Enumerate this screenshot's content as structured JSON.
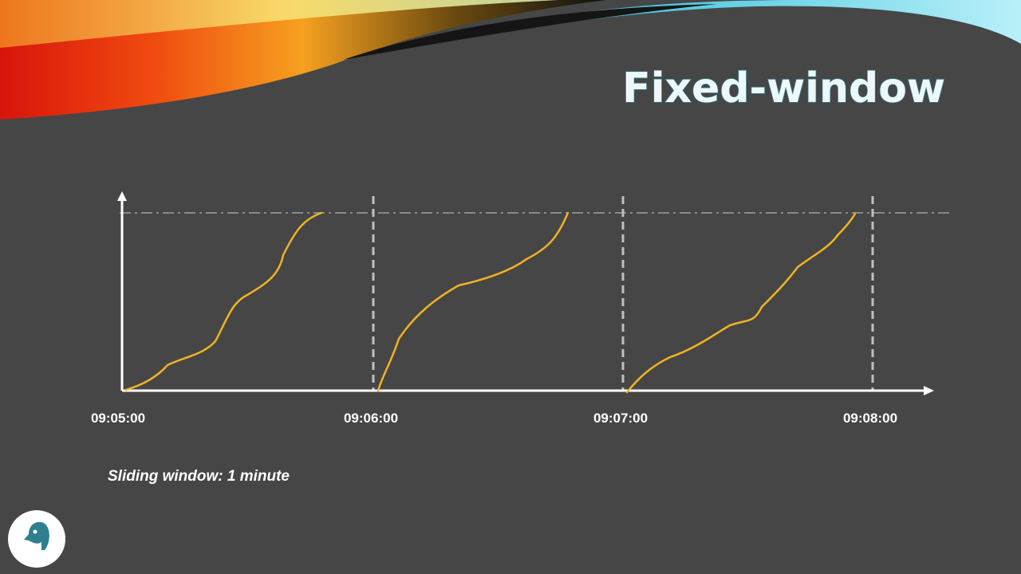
{
  "title": "Fixed-window",
  "axis": {
    "ticks": [
      "09:05:00",
      "09:06:00",
      "09:07:00",
      "09:08:00"
    ]
  },
  "caption": "Sliding window: 1 minute"
}
